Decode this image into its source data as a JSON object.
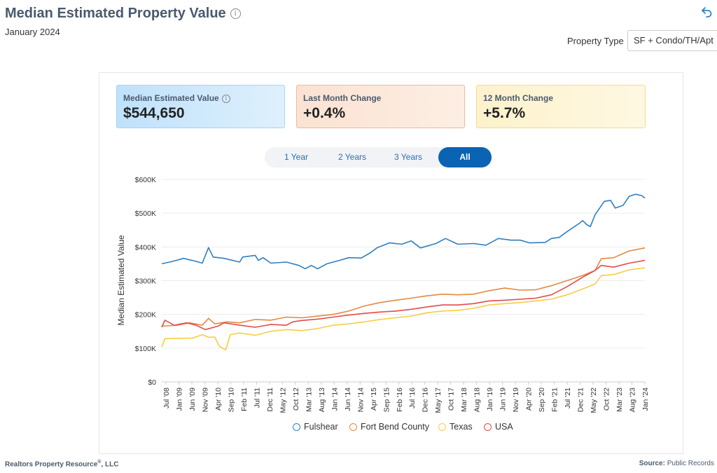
{
  "header": {
    "title": "Median Estimated Property Value",
    "subtitle": "January 2024",
    "property_type_label": "Property Type",
    "property_type_value": "SF + Condo/TH/Apt"
  },
  "metrics": [
    {
      "label": "Median Estimated Value",
      "value": "$544,650"
    },
    {
      "label": "Last Month Change",
      "value": "+0.4%"
    },
    {
      "label": "12 Month Change",
      "value": "+5.7%"
    }
  ],
  "tabs": [
    "1 Year",
    "2 Years",
    "3 Years",
    "All"
  ],
  "active_tab": "All",
  "footer": {
    "left": "Realtors Property Resource",
    "left_reg": "®",
    "left_suffix": ", LLC",
    "source_label": "Source:",
    "source_value": "Public Records"
  },
  "colors": {
    "Fulshear": "#2f7fc1",
    "Fort Bend County": "#e38a3f",
    "Texas": "#f7cd44",
    "USA": "#e24c4b"
  },
  "chart_data": {
    "type": "line",
    "title": "Median Estimated Property Value",
    "xlabel": "",
    "ylabel": "Median Estimated Value",
    "ylim": [
      0,
      600000
    ],
    "yticks": [
      "$0",
      "$100K",
      "$200K",
      "$300K",
      "$400K",
      "$500K",
      "$600K"
    ],
    "xticks": [
      "Jul '08",
      "Jan '09",
      "Jun '09",
      "Nov '09",
      "Apr '10",
      "Sep '10",
      "Feb '11",
      "Jul '11",
      "Dec '11",
      "May '12",
      "Oct '12",
      "Mar '13",
      "Aug '13",
      "Jan '14",
      "Jun '14",
      "Nov '14",
      "Apr '15",
      "Sep '15",
      "Feb '16",
      "Jul '16",
      "Dec '16",
      "May '17",
      "Oct '17",
      "Mar '18",
      "Aug '18",
      "Jan '19",
      "Jun '19",
      "Nov '19",
      "Apr '20",
      "Sep '20",
      "Feb '21",
      "Jul '21",
      "Dec '21",
      "May '22",
      "Oct '22",
      "Mar '23",
      "Aug '23",
      "Jan '24"
    ],
    "x_start": 2008.5,
    "x_end": 2024.0,
    "grid": true,
    "legend": "bottom",
    "series": [
      {
        "name": "Fulshear",
        "points": [
          [
            2008.5,
            350000
          ],
          [
            2008.8,
            356000
          ],
          [
            2009.2,
            366000
          ],
          [
            2009.6,
            357000
          ],
          [
            2009.8,
            352000
          ],
          [
            2010.0,
            398000
          ],
          [
            2010.15,
            370000
          ],
          [
            2010.5,
            366000
          ],
          [
            2011.0,
            355000
          ],
          [
            2011.1,
            370000
          ],
          [
            2011.5,
            375000
          ],
          [
            2011.6,
            360000
          ],
          [
            2011.75,
            368000
          ],
          [
            2012.0,
            352000
          ],
          [
            2012.5,
            355000
          ],
          [
            2012.9,
            345000
          ],
          [
            2013.1,
            335000
          ],
          [
            2013.3,
            345000
          ],
          [
            2013.5,
            335000
          ],
          [
            2013.8,
            350000
          ],
          [
            2014.2,
            360000
          ],
          [
            2014.5,
            368000
          ],
          [
            2014.9,
            367000
          ],
          [
            2015.2,
            383000
          ],
          [
            2015.4,
            397000
          ],
          [
            2015.8,
            412000
          ],
          [
            2016.2,
            408000
          ],
          [
            2016.5,
            418000
          ],
          [
            2016.8,
            397000
          ],
          [
            2017.3,
            410000
          ],
          [
            2017.6,
            425000
          ],
          [
            2018.0,
            408000
          ],
          [
            2018.5,
            410000
          ],
          [
            2018.9,
            405000
          ],
          [
            2019.3,
            425000
          ],
          [
            2019.7,
            420000
          ],
          [
            2020.0,
            420000
          ],
          [
            2020.3,
            412000
          ],
          [
            2020.8,
            413000
          ],
          [
            2021.0,
            425000
          ],
          [
            2021.25,
            428000
          ],
          [
            2021.5,
            445000
          ],
          [
            2021.9,
            470000
          ],
          [
            2022.0,
            478000
          ],
          [
            2022.15,
            465000
          ],
          [
            2022.25,
            460000
          ],
          [
            2022.4,
            495000
          ],
          [
            2022.7,
            535000
          ],
          [
            2022.9,
            538000
          ],
          [
            2023.05,
            515000
          ],
          [
            2023.3,
            523000
          ],
          [
            2023.5,
            550000
          ],
          [
            2023.7,
            556000
          ],
          [
            2023.9,
            552000
          ],
          [
            2024.0,
            544650
          ]
        ]
      },
      {
        "name": "Fort Bend County",
        "points": [
          [
            2008.5,
            165000
          ],
          [
            2009.0,
            168000
          ],
          [
            2009.4,
            175000
          ],
          [
            2009.8,
            168000
          ],
          [
            2010.0,
            188000
          ],
          [
            2010.2,
            172000
          ],
          [
            2010.6,
            178000
          ],
          [
            2011.0,
            175000
          ],
          [
            2011.5,
            185000
          ],
          [
            2012.0,
            183000
          ],
          [
            2012.5,
            192000
          ],
          [
            2013.0,
            190000
          ],
          [
            2013.5,
            195000
          ],
          [
            2014.0,
            200000
          ],
          [
            2014.5,
            210000
          ],
          [
            2015.0,
            225000
          ],
          [
            2015.5,
            235000
          ],
          [
            2016.0,
            242000
          ],
          [
            2016.5,
            248000
          ],
          [
            2017.0,
            255000
          ],
          [
            2017.5,
            260000
          ],
          [
            2018.0,
            258000
          ],
          [
            2018.5,
            260000
          ],
          [
            2019.0,
            270000
          ],
          [
            2019.5,
            278000
          ],
          [
            2020.0,
            272000
          ],
          [
            2020.5,
            273000
          ],
          [
            2021.0,
            285000
          ],
          [
            2021.5,
            300000
          ],
          [
            2022.0,
            315000
          ],
          [
            2022.4,
            330000
          ],
          [
            2022.6,
            365000
          ],
          [
            2023.0,
            368000
          ],
          [
            2023.5,
            388000
          ],
          [
            2024.0,
            397000
          ]
        ]
      },
      {
        "name": "Texas",
        "points": [
          [
            2008.5,
            103000
          ],
          [
            2008.6,
            128000
          ],
          [
            2009.5,
            130000
          ],
          [
            2009.8,
            140000
          ],
          [
            2010.0,
            132000
          ],
          [
            2010.2,
            133000
          ],
          [
            2010.35,
            105000
          ],
          [
            2010.55,
            95000
          ],
          [
            2010.7,
            140000
          ],
          [
            2011.0,
            145000
          ],
          [
            2011.5,
            138000
          ],
          [
            2012.0,
            150000
          ],
          [
            2012.5,
            155000
          ],
          [
            2013.0,
            152000
          ],
          [
            2013.5,
            158000
          ],
          [
            2014.0,
            168000
          ],
          [
            2014.5,
            172000
          ],
          [
            2015.0,
            178000
          ],
          [
            2015.5,
            185000
          ],
          [
            2016.0,
            190000
          ],
          [
            2016.5,
            195000
          ],
          [
            2017.0,
            205000
          ],
          [
            2017.5,
            210000
          ],
          [
            2018.0,
            212000
          ],
          [
            2018.5,
            218000
          ],
          [
            2019.0,
            228000
          ],
          [
            2019.5,
            232000
          ],
          [
            2020.0,
            235000
          ],
          [
            2020.5,
            240000
          ],
          [
            2021.0,
            245000
          ],
          [
            2021.5,
            258000
          ],
          [
            2022.0,
            275000
          ],
          [
            2022.4,
            290000
          ],
          [
            2022.6,
            315000
          ],
          [
            2023.0,
            318000
          ],
          [
            2023.5,
            332000
          ],
          [
            2024.0,
            338000
          ]
        ]
      },
      {
        "name": "USA",
        "points": [
          [
            2008.5,
            162000
          ],
          [
            2008.6,
            183000
          ],
          [
            2008.9,
            168000
          ],
          [
            2009.3,
            175000
          ],
          [
            2009.6,
            168000
          ],
          [
            2009.9,
            155000
          ],
          [
            2010.3,
            165000
          ],
          [
            2010.5,
            175000
          ],
          [
            2011.0,
            168000
          ],
          [
            2011.5,
            162000
          ],
          [
            2012.0,
            170000
          ],
          [
            2012.5,
            168000
          ],
          [
            2012.7,
            178000
          ],
          [
            2013.0,
            182000
          ],
          [
            2013.5,
            186000
          ],
          [
            2014.0,
            192000
          ],
          [
            2014.5,
            198000
          ],
          [
            2015.0,
            203000
          ],
          [
            2015.5,
            207000
          ],
          [
            2016.0,
            210000
          ],
          [
            2016.5,
            215000
          ],
          [
            2017.0,
            222000
          ],
          [
            2017.5,
            228000
          ],
          [
            2018.0,
            228000
          ],
          [
            2018.5,
            232000
          ],
          [
            2019.0,
            240000
          ],
          [
            2019.5,
            242000
          ],
          [
            2020.0,
            245000
          ],
          [
            2020.5,
            248000
          ],
          [
            2021.0,
            258000
          ],
          [
            2021.5,
            282000
          ],
          [
            2022.0,
            310000
          ],
          [
            2022.4,
            330000
          ],
          [
            2022.6,
            345000
          ],
          [
            2023.0,
            340000
          ],
          [
            2023.5,
            352000
          ],
          [
            2024.0,
            360000
          ]
        ]
      }
    ]
  }
}
